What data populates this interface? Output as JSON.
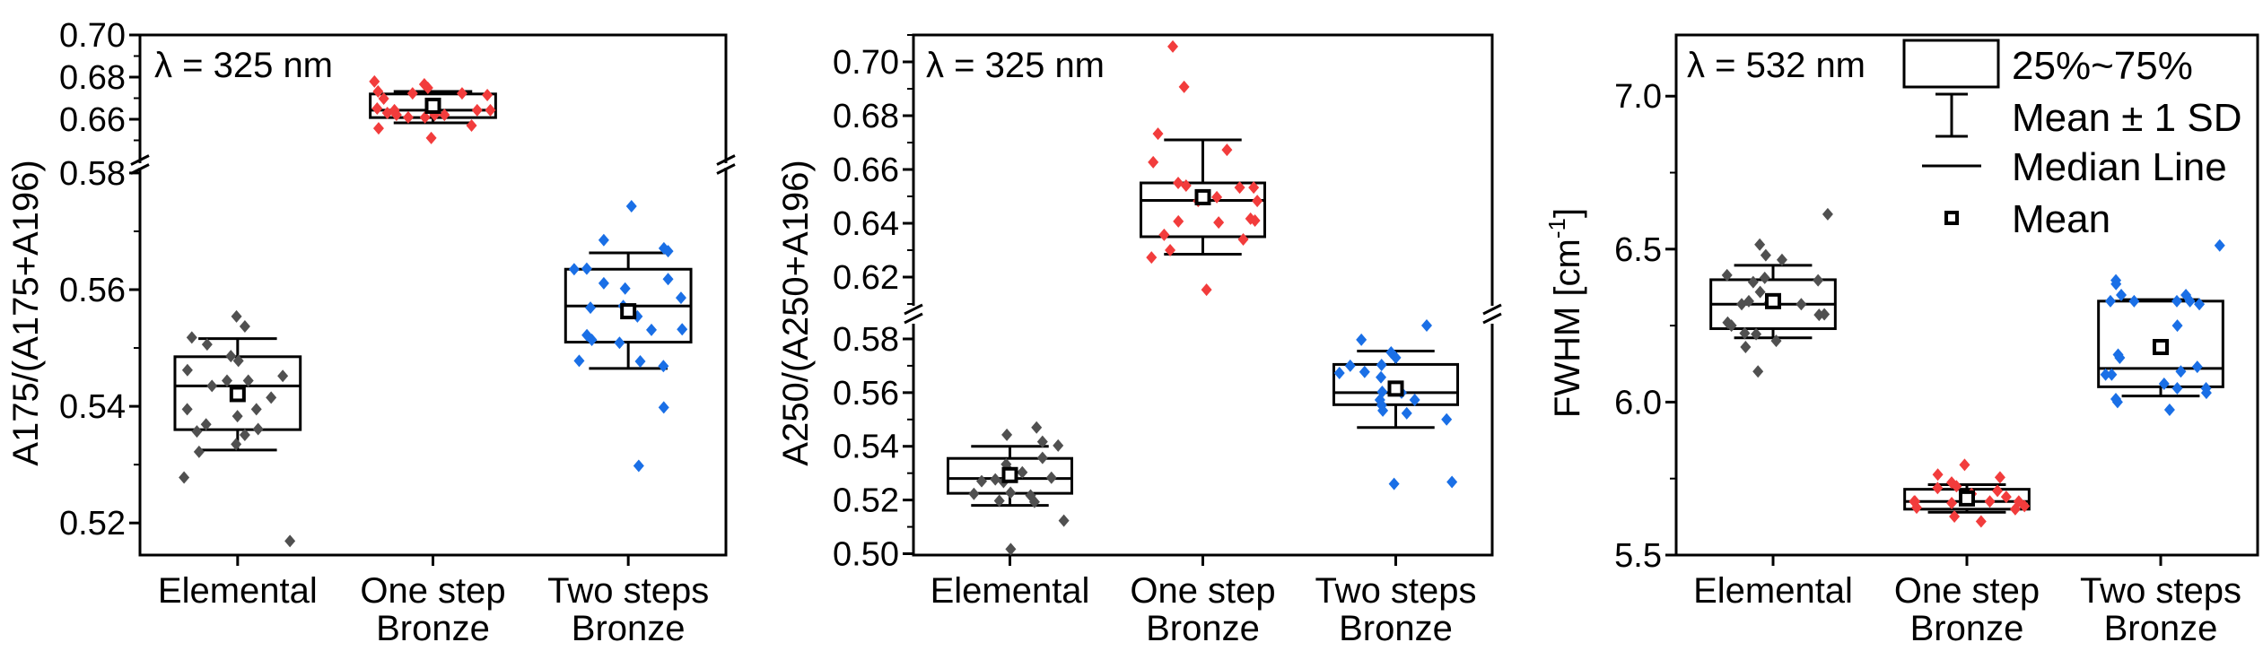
{
  "colors": {
    "elemental": "#505050",
    "one_step": "#f23c3c",
    "two_steps": "#1a6fe6",
    "lambda_325": "#800080",
    "lambda_532": "#008000"
  },
  "legend": {
    "items": [
      {
        "symbol": "box",
        "label": "25%~75%"
      },
      {
        "symbol": "error-bar",
        "label": "Mean ± 1 SD"
      },
      {
        "symbol": "line",
        "label": "Median Line"
      },
      {
        "symbol": "open-square",
        "label": "Mean"
      }
    ]
  },
  "chart_data": [
    {
      "panel": "A",
      "type": "box",
      "annotation": "λ = 325 nm",
      "ylabel": "A175/(A175+A196)",
      "categories": [
        "Elemental",
        "One step\nBronze",
        "Two steps\nBronze"
      ],
      "y_broken": true,
      "y_segments": [
        {
          "range": [
            0.5145,
            0.5806
          ],
          "major_ticks": [
            0.52,
            0.54,
            0.56,
            0.58
          ]
        },
        {
          "range": [
            0.64,
            0.7
          ],
          "major_ticks": [
            0.66,
            0.68,
            0.7
          ]
        }
      ],
      "tick_format_decimals": 2,
      "boxes": [
        {
          "q1": 0.536,
          "median": 0.5435,
          "q3": 0.5485,
          "mean": 0.5421,
          "sd_low": 0.5325,
          "sd_high": 0.5516,
          "points": [
            0.5554,
            0.5537,
            0.5518,
            0.5506,
            0.5486,
            0.5478,
            0.5462,
            0.5452,
            0.5444,
            0.5444,
            0.5435,
            0.5415,
            0.5395,
            0.5395,
            0.5383,
            0.5369,
            0.5361,
            0.5357,
            0.5351,
            0.5335,
            0.5322,
            0.5278,
            0.5169
          ]
        },
        {
          "q1": 0.6608,
          "median": 0.6643,
          "q3": 0.672,
          "mean": 0.6664,
          "sd_low": 0.6583,
          "sd_high": 0.6732,
          "points": [
            0.6779,
            0.6766,
            0.6749,
            0.6732,
            0.6723,
            0.6723,
            0.6715,
            0.6698,
            0.6651,
            0.6643,
            0.6643,
            0.6643,
            0.663,
            0.6621,
            0.6621,
            0.6621,
            0.6609,
            0.6609,
            0.657,
            0.6557,
            0.6511
          ]
        },
        {
          "q1": 0.551,
          "median": 0.5572,
          "q3": 0.5635,
          "mean": 0.5563,
          "sd_low": 0.5465,
          "sd_high": 0.5663,
          "points": [
            0.5743,
            0.5685,
            0.5671,
            0.5666,
            0.5635,
            0.5636,
            0.5618,
            0.5611,
            0.5602,
            0.5586,
            0.5572,
            0.5569,
            0.5554,
            0.5532,
            0.5531,
            0.5522,
            0.5514,
            0.5509,
            0.5478,
            0.5477,
            0.5469,
            0.5398,
            0.5298
          ]
        }
      ]
    },
    {
      "panel": "B",
      "type": "box",
      "annotation": "λ = 325 nm",
      "ylabel": "A250/(A250+A196)",
      "categories": [
        "Elemental",
        "One step\nBronze",
        "Two steps\nBronze"
      ],
      "y_broken": true,
      "y_segments": [
        {
          "range": [
            0.4995,
            0.585
          ],
          "major_ticks": [
            0.5,
            0.52,
            0.54,
            0.56,
            0.58
          ]
        },
        {
          "range": [
            0.61,
            0.71
          ],
          "major_ticks": [
            0.62,
            0.64,
            0.66,
            0.68,
            0.7
          ]
        }
      ],
      "tick_format_decimals": 2,
      "boxes": [
        {
          "q1": 0.5225,
          "median": 0.528,
          "q3": 0.5355,
          "mean": 0.5293,
          "sd_low": 0.518,
          "sd_high": 0.54,
          "points": [
            0.547,
            0.5443,
            0.5417,
            0.5403,
            0.5357,
            0.5333,
            0.5317,
            0.5303,
            0.5297,
            0.5283,
            0.5277,
            0.527,
            0.5267,
            0.5227,
            0.5223,
            0.5217,
            0.5197,
            0.5193,
            0.5123,
            0.5017
          ]
        },
        {
          "q1": 0.635,
          "median": 0.6485,
          "q3": 0.655,
          "mean": 0.6497,
          "sd_low": 0.6285,
          "sd_high": 0.671,
          "points": [
            0.7057,
            0.6907,
            0.6733,
            0.6673,
            0.6627,
            0.655,
            0.654,
            0.6533,
            0.6533,
            0.6497,
            0.6483,
            0.6483,
            0.6417,
            0.641,
            0.6407,
            0.6403,
            0.6357,
            0.634,
            0.63,
            0.6273,
            0.6153
          ]
        },
        {
          "q1": 0.5555,
          "median": 0.56,
          "q3": 0.5705,
          "mean": 0.5615,
          "sd_low": 0.547,
          "sd_high": 0.5755,
          "points": [
            0.585,
            0.5797,
            0.575,
            0.573,
            0.5703,
            0.57,
            0.5677,
            0.5673,
            0.5657,
            0.5603,
            0.56,
            0.5573,
            0.5573,
            0.5553,
            0.5533,
            0.5523,
            0.55,
            0.5267,
            0.526
          ]
        }
      ]
    },
    {
      "panel": "C",
      "type": "box",
      "annotation": "λ = 532 nm",
      "ylabel": "FWHM [cm-1]",
      "ylabel_parts": {
        "main": "FWHM [cm",
        "sup": "-1",
        "end": "]"
      },
      "categories": [
        "Elemental",
        "One step\nBronze",
        "Two steps\nBronze"
      ],
      "y_broken": false,
      "y_segments": [
        {
          "range": [
            5.5,
            7.2
          ],
          "major_ticks": [
            5.5,
            6.0,
            6.5,
            7.0
          ]
        }
      ],
      "tick_format_decimals": 1,
      "boxes": [
        {
          "q1": 6.24,
          "median": 6.32,
          "q3": 6.4,
          "mean": 6.33,
          "sd_low": 6.21,
          "sd_high": 6.447,
          "points": [
            6.614,
            6.515,
            6.48,
            6.465,
            6.415,
            6.406,
            6.398,
            6.392,
            6.36,
            6.33,
            6.325,
            6.32,
            6.32,
            6.287,
            6.285,
            6.26,
            6.25,
            6.225,
            6.222,
            6.2,
            6.18,
            6.1
          ]
        },
        {
          "q1": 5.65,
          "median": 5.675,
          "q3": 5.715,
          "mean": 5.685,
          "sd_low": 5.64,
          "sd_high": 5.73,
          "points": [
            5.795,
            5.763,
            5.754,
            5.737,
            5.725,
            5.719,
            5.71,
            5.7,
            5.69,
            5.675,
            5.675,
            5.675,
            5.675,
            5.67,
            5.66,
            5.655,
            5.65,
            5.626,
            5.61
          ]
        },
        {
          "q1": 6.05,
          "median": 6.11,
          "q3": 6.33,
          "mean": 6.18,
          "sd_low": 6.02,
          "sd_high": 6.335,
          "points": [
            6.512,
            6.398,
            6.386,
            6.35,
            6.35,
            6.33,
            6.33,
            6.33,
            6.33,
            6.32,
            6.25,
            6.155,
            6.145,
            6.115,
            6.09,
            6.09,
            6.1,
            6.06,
            6.045,
            6.045,
            6.03,
            6.01,
            6.0,
            5.975
          ]
        }
      ]
    }
  ]
}
